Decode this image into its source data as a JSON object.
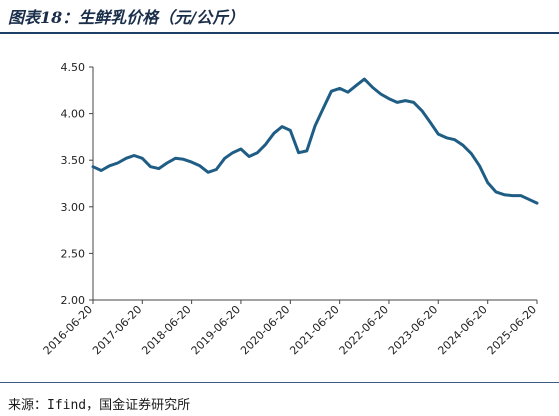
{
  "figure": {
    "title": "图表18：生鲜乳价格（元/公斤）",
    "source": "来源：Ifind，国金证券研究所"
  },
  "chart_data": {
    "type": "line",
    "title": "",
    "xlabel": "",
    "ylabel": "",
    "ylim": [
      2.0,
      4.5
    ],
    "yticks": [
      "4.50",
      "4.00",
      "3.50",
      "3.00",
      "2.50",
      "2.00"
    ],
    "x_tick_labels": [
      "2016-06-20",
      "2017-06-20",
      "2018-06-20",
      "2019-06-20",
      "2020-06-20",
      "2021-06-20",
      "2022-06-20",
      "2023-06-20",
      "2024-06-20",
      "2025-06-20"
    ],
    "line_color": "#1f5d85",
    "grid": false,
    "legend": "none",
    "series": [
      {
        "x": [
          "2016-06-20",
          "2016-08-20",
          "2016-10-20",
          "2016-12-20",
          "2017-02-20",
          "2017-04-20",
          "2017-06-20",
          "2017-08-20",
          "2017-10-20",
          "2017-12-20",
          "2018-02-20",
          "2018-04-20",
          "2018-06-20",
          "2018-08-20",
          "2018-10-20",
          "2018-12-20",
          "2019-02-20",
          "2019-04-20",
          "2019-06-20",
          "2019-08-20",
          "2019-10-20",
          "2019-12-20",
          "2020-02-20",
          "2020-04-20",
          "2020-06-20",
          "2020-08-20",
          "2020-10-20",
          "2020-12-20",
          "2021-02-20",
          "2021-04-20",
          "2021-06-20",
          "2021-08-20",
          "2021-10-20",
          "2021-12-20",
          "2022-02-20",
          "2022-04-20",
          "2022-06-20",
          "2022-08-20",
          "2022-10-20",
          "2022-12-20",
          "2023-02-20",
          "2023-04-20",
          "2023-06-20",
          "2023-08-20",
          "2023-10-20",
          "2023-12-20",
          "2024-02-20",
          "2024-04-20",
          "2024-06-20",
          "2024-08-20",
          "2024-10-20",
          "2024-12-20",
          "2025-02-20",
          "2025-04-20",
          "2025-06-20"
        ],
        "values": [
          3.43,
          3.39,
          3.44,
          3.47,
          3.52,
          3.55,
          3.52,
          3.43,
          3.41,
          3.47,
          3.52,
          3.51,
          3.48,
          3.44,
          3.37,
          3.4,
          3.52,
          3.58,
          3.62,
          3.54,
          3.58,
          3.67,
          3.79,
          3.86,
          3.82,
          3.58,
          3.6,
          3.87,
          4.06,
          4.24,
          4.27,
          4.23,
          4.3,
          4.37,
          4.28,
          4.21,
          4.16,
          4.12,
          4.14,
          4.12,
          4.03,
          3.91,
          3.78,
          3.74,
          3.72,
          3.66,
          3.57,
          3.44,
          3.26,
          3.16,
          3.13,
          3.12,
          3.12,
          3.08,
          3.04
        ]
      }
    ]
  }
}
